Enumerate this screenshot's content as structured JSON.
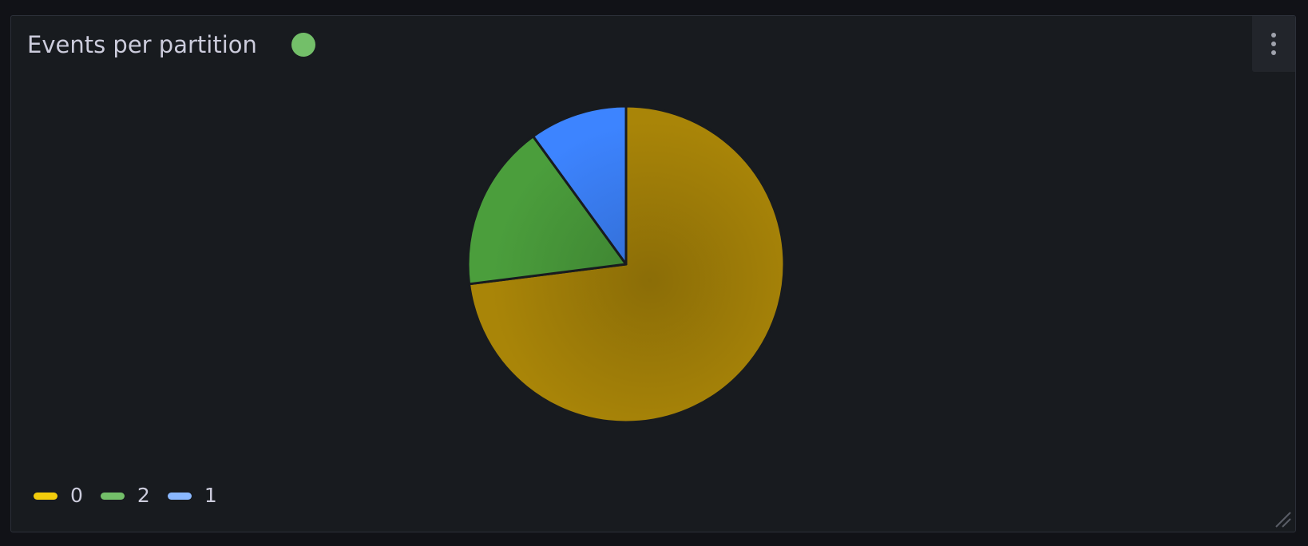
{
  "panel": {
    "title": "Events per partition",
    "status_color": "#73bf69",
    "menu_icon": "kebab-menu-icon"
  },
  "chart_data": {
    "type": "pie",
    "categories": [
      "0",
      "2",
      "1"
    ],
    "values": [
      73,
      17,
      10
    ],
    "colors": [
      "#a98508",
      "#4b9e3c",
      "#3d84ff"
    ],
    "legend_colors": [
      "#f2cc0c",
      "#73bf69",
      "#8ab8ff"
    ],
    "legend_placement": "bottom-left"
  }
}
